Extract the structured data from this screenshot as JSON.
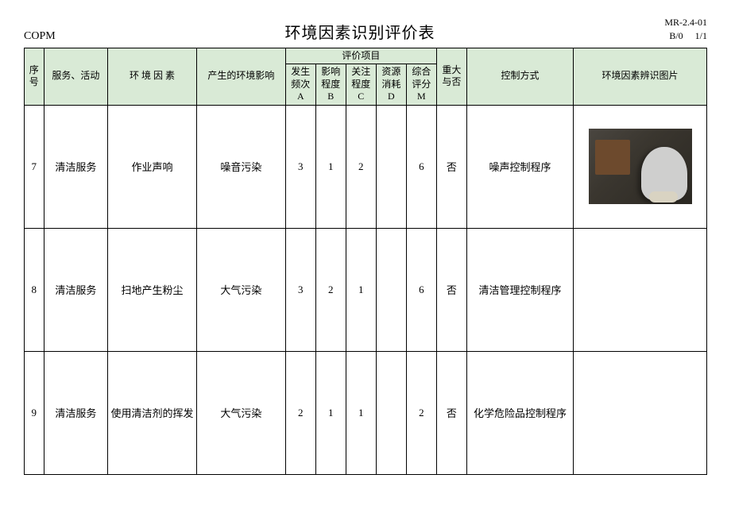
{
  "doc_code_top": "MR-2.4-01",
  "doc_code_bottom": "B/0  1/1",
  "company": "COPM",
  "title": "环境因素识别评价表",
  "headers": {
    "seq": "序号",
    "service": "服务、活动",
    "factor": "环 境 因 素",
    "impact": "产生的环境影响",
    "eval_group": "评价项目",
    "a": "发生频次 A",
    "b": "影响程度 B",
    "c": "关注程度 C",
    "d": "资源消耗 D",
    "m": "综合评分 M",
    "major": "重大与否",
    "control": "控制方式",
    "image": "环境因素辨识图片"
  },
  "rows": [
    {
      "seq": "7",
      "service": "清洁服务",
      "factor": "作业声响",
      "impact": "噪音污染",
      "a": "3",
      "b": "1",
      "c": "2",
      "d": "",
      "m": "6",
      "major": "否",
      "control": "噪声控制程序",
      "has_image": true
    },
    {
      "seq": "8",
      "service": "清洁服务",
      "factor": "扫地产生粉尘",
      "impact": "大气污染",
      "a": "3",
      "b": "2",
      "c": "1",
      "d": "",
      "m": "6",
      "major": "否",
      "control": "清洁管理控制程序",
      "has_image": false
    },
    {
      "seq": "9",
      "service": "清洁服务",
      "factor": "使用清洁剂的挥发",
      "impact": "大气污染",
      "a": "2",
      "b": "1",
      "c": "1",
      "d": "",
      "m": "2",
      "major": "否",
      "control": "化学危险品控制程序",
      "has_image": false
    }
  ]
}
